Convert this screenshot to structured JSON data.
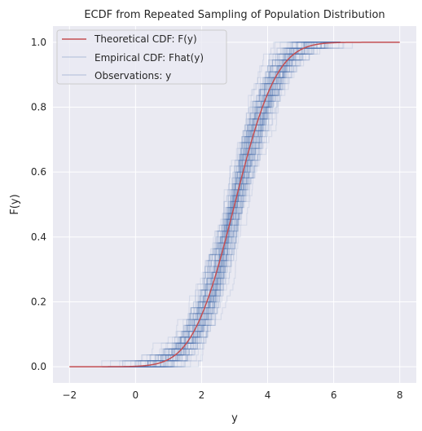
{
  "chart_data": {
    "type": "line",
    "title": "ECDF from Repeated Sampling of Population Distribution",
    "xlabel": "y",
    "ylabel": "F(y)",
    "xlim": [
      -2.5,
      8.5
    ],
    "ylim": [
      -0.05,
      1.05
    ],
    "xticks": [
      -2,
      0,
      2,
      4,
      6,
      8
    ],
    "xtick_labels": [
      "−2",
      "0",
      "2",
      "4",
      "6",
      "8"
    ],
    "yticks": [
      0.0,
      0.2,
      0.4,
      0.6,
      0.8,
      1.0
    ],
    "ytick_labels": [
      "0.0",
      "0.2",
      "0.4",
      "0.6",
      "0.8",
      "1.0"
    ],
    "grid": true,
    "legend_position": "top-left",
    "series": [
      {
        "name": "Theoretical CDF: F(y)",
        "kind": "theoretical",
        "color": "#c44e52",
        "x": [
          -2.0,
          -1.0,
          0.0,
          0.5,
          1.0,
          1.5,
          2.0,
          2.5,
          3.0,
          3.5,
          4.0,
          4.5,
          5.0,
          5.5,
          6.0,
          6.5,
          7.0,
          8.0
        ],
        "values": [
          0.0,
          0.0,
          0.003,
          0.01,
          0.04,
          0.09,
          0.18,
          0.33,
          0.5,
          0.67,
          0.82,
          0.91,
          0.96,
          0.99,
          0.997,
          1.0,
          1.0,
          1.0
        ]
      },
      {
        "name": "Empirical CDF: Fhat(y)",
        "kind": "empirical",
        "color": "#4c72b0",
        "x_range": [
          -1.0,
          6.2
        ],
        "values": [
          0.0,
          1.0
        ]
      },
      {
        "name": "Observations: y",
        "kind": "observations",
        "color": "#4c72b0"
      }
    ]
  },
  "colors": {
    "axes_background": "#eaeaf2",
    "grid": "#ffffff",
    "theoretical": "#c44e52",
    "empirical": "#4c72b0"
  }
}
